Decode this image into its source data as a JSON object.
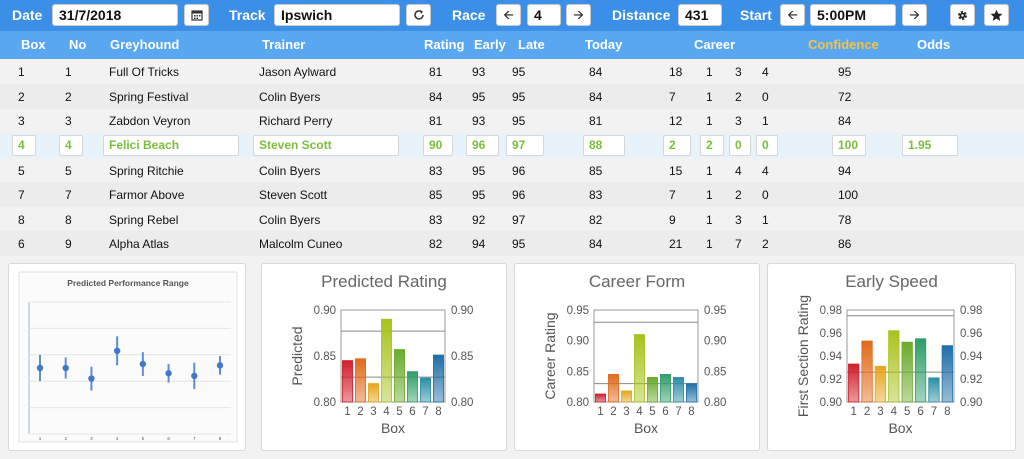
{
  "toolbar": {
    "date_label": "Date",
    "date_value": "31/7/2018",
    "calendar_icon": "calendar-icon",
    "track_label": "Track",
    "track_value": "Ipswich",
    "refresh_icon": "refresh-icon",
    "race_label": "Race",
    "race_value": "4",
    "distance_label": "Distance",
    "distance_value": "431",
    "start_label": "Start",
    "start_value": "5:00PM",
    "settings_icon": "gear-icon",
    "favorite_icon": "star-icon"
  },
  "columns": {
    "box": "Box",
    "no": "No",
    "greyhound": "Greyhound",
    "trainer": "Trainer",
    "rating": "Rating",
    "early": "Early",
    "late": "Late",
    "today": "Today",
    "career": "Career",
    "confidence": "Confidence",
    "odds": "Odds"
  },
  "colors": {
    "toolbar": "#3b8fe6",
    "header": "#5aa7f1",
    "confidence": "#f5c146",
    "selected_text": "#7cbd3c"
  },
  "rows": [
    {
      "box": "1",
      "no": "1",
      "greyhound": "Full Of Tricks",
      "trainer": "Jason Aylward",
      "rating": "81",
      "early": "93",
      "late": "95",
      "today": "84",
      "c1": "18",
      "c2": "1",
      "c3": "3",
      "c4": "4",
      "confidence": "95",
      "odds": ""
    },
    {
      "box": "2",
      "no": "2",
      "greyhound": "Spring Festival",
      "trainer": "Colin Byers",
      "rating": "84",
      "early": "95",
      "late": "95",
      "today": "84",
      "c1": "7",
      "c2": "1",
      "c3": "2",
      "c4": "0",
      "confidence": "72",
      "odds": ""
    },
    {
      "box": "3",
      "no": "3",
      "greyhound": "Zabdon Veyron",
      "trainer": "Richard Perry",
      "rating": "81",
      "early": "93",
      "late": "95",
      "today": "81",
      "c1": "12",
      "c2": "1",
      "c3": "3",
      "c4": "1",
      "confidence": "84",
      "odds": ""
    },
    {
      "box": "4",
      "no": "4",
      "greyhound": "Felici Beach",
      "trainer": "Steven Scott",
      "rating": "90",
      "early": "96",
      "late": "97",
      "today": "88",
      "c1": "2",
      "c2": "2",
      "c3": "0",
      "c4": "0",
      "confidence": "100",
      "odds": "1.95"
    },
    {
      "box": "5",
      "no": "5",
      "greyhound": "Spring Ritchie",
      "trainer": "Colin Byers",
      "rating": "83",
      "early": "95",
      "late": "96",
      "today": "85",
      "c1": "15",
      "c2": "1",
      "c3": "4",
      "c4": "4",
      "confidence": "94",
      "odds": ""
    },
    {
      "box": "7",
      "no": "7",
      "greyhound": "Farmor Above",
      "trainer": "Steven Scott",
      "rating": "85",
      "early": "95",
      "late": "96",
      "today": "83",
      "c1": "7",
      "c2": "1",
      "c3": "2",
      "c4": "0",
      "confidence": "100",
      "odds": ""
    },
    {
      "box": "8",
      "no": "8",
      "greyhound": "Spring Rebel",
      "trainer": "Colin Byers",
      "rating": "83",
      "early": "92",
      "late": "97",
      "today": "82",
      "c1": "9",
      "c2": "1",
      "c3": "3",
      "c4": "1",
      "confidence": "78",
      "odds": ""
    },
    {
      "box": "6",
      "no": "9",
      "greyhound": "Alpha Atlas",
      "trainer": "Malcolm Cuneo",
      "rating": "82",
      "early": "94",
      "late": "95",
      "today": "84",
      "c1": "21",
      "c2": "1",
      "c3": "7",
      "c4": "2",
      "confidence": "86",
      "odds": ""
    }
  ],
  "chart_data": [
    {
      "type": "scatter",
      "title": "Predicted Performance Range",
      "x": [
        1,
        2,
        3,
        4,
        5,
        6,
        7,
        8
      ],
      "y": [
        0.5,
        0.5,
        0.42,
        0.63,
        0.53,
        0.46,
        0.44,
        0.52
      ],
      "err": [
        0.1,
        0.08,
        0.09,
        0.11,
        0.09,
        0.07,
        0.1,
        0.07
      ],
      "ylim": [
        0,
        1
      ],
      "grid": true
    },
    {
      "type": "bar",
      "title": "Predicted Rating",
      "categories": [
        "1",
        "2",
        "3",
        "4",
        "5",
        "6",
        "7",
        "8"
      ],
      "values": [
        0.845,
        0.847,
        0.82,
        0.89,
        0.857,
        0.833,
        0.826,
        0.851
      ],
      "ylabel": "Predicted",
      "xlabel": "Box",
      "ylim": [
        0.8,
        0.9
      ],
      "yticks": [
        "0.80",
        "0.85",
        "0.90"
      ],
      "ref_lines": [
        0.877,
        0.827
      ]
    },
    {
      "type": "bar",
      "title": "Career Form",
      "categories": [
        "1",
        "2",
        "3",
        "4",
        "5",
        "6",
        "7",
        "8"
      ],
      "values": [
        0.813,
        0.845,
        0.818,
        0.91,
        0.84,
        0.845,
        0.84,
        0.83
      ],
      "ylabel": "Career Rating",
      "xlabel": "Box",
      "ylim": [
        0.8,
        0.95
      ],
      "yticks": [
        "0.80",
        "0.85",
        "0.90",
        "0.95"
      ],
      "ref_lines": [
        0.93,
        0.83
      ]
    },
    {
      "type": "bar",
      "title": "Early Speed",
      "categories": [
        "1",
        "2",
        "3",
        "4",
        "5",
        "6",
        "7",
        "8"
      ],
      "values": [
        0.933,
        0.953,
        0.931,
        0.962,
        0.952,
        0.955,
        0.921,
        0.949
      ],
      "ylabel": "First Section Rating",
      "xlabel": "Box",
      "ylim": [
        0.9,
        0.98
      ],
      "yticks": [
        "0.90",
        "0.92",
        "0.94",
        "0.96",
        "0.98"
      ],
      "ref_lines": [
        0.975,
        0.926
      ]
    }
  ]
}
